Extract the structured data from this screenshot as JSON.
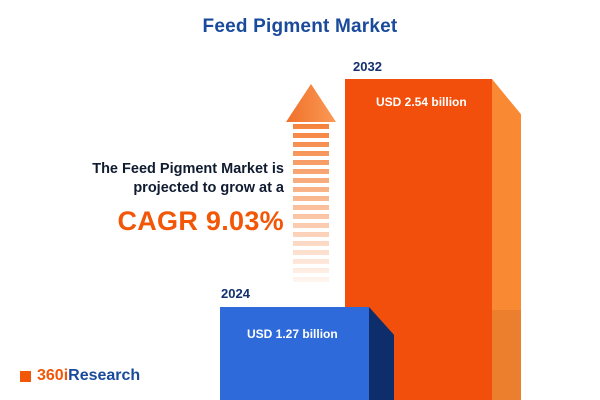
{
  "title": "Feed Pigment Market",
  "description": {
    "line1": "The Feed Pigment Market is",
    "line2": "projected to grow at a",
    "cagr": "CAGR 9.03%"
  },
  "logo": {
    "prefix": "360i",
    "suffix": "Research"
  },
  "chart_data": {
    "type": "bar",
    "title": "Feed Pigment Market",
    "categories": [
      "2024",
      "2032"
    ],
    "values": [
      1.27,
      2.54
    ],
    "unit": "USD billion",
    "value_labels": [
      "USD 1.27 billion",
      "USD 2.54 billion"
    ],
    "annotations": [
      "The Feed Pigment Market is projected to grow at a CAGR 9.03%"
    ],
    "legend_position": "none",
    "grid": false,
    "colors": {
      "bar_2024_front": "#2e6ada",
      "bar_2024_side": "#0e2e6b",
      "bar_2032_front": "#f24e0c",
      "bar_2032_side": "#f98a33",
      "accent_orange": "#f25607",
      "navy": "#1a4a9c",
      "background": "#ffffff"
    }
  }
}
